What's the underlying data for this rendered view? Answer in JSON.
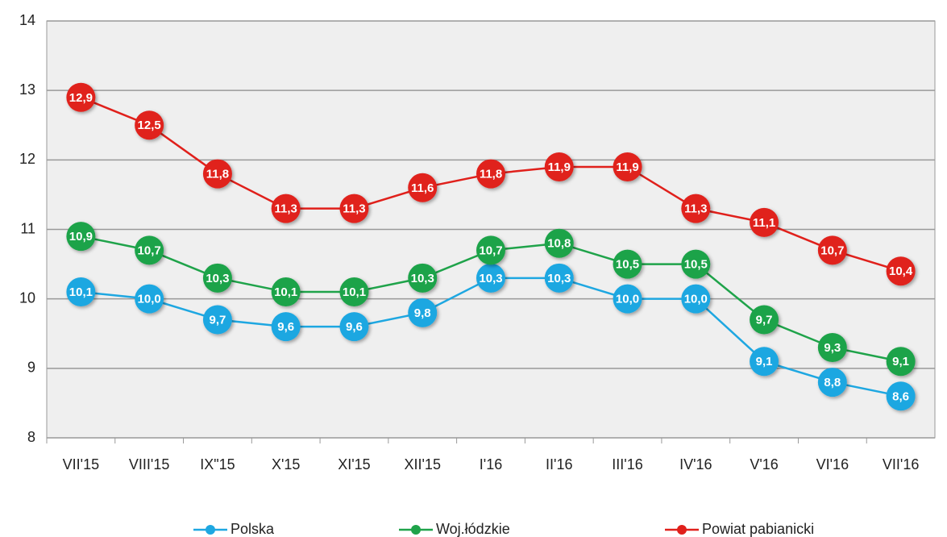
{
  "chart_data": {
    "type": "line",
    "categories": [
      "VII'15",
      "VIII'15",
      "IX\"15",
      "X'15",
      "XI'15",
      "XII'15",
      "I'16",
      "II'16",
      "III'16",
      "IV'16",
      "V'16",
      "VI'16",
      "VII'16"
    ],
    "series": [
      {
        "name": "Polska",
        "color": "#1ea7e1",
        "values": [
          10.1,
          10.0,
          9.7,
          9.6,
          9.6,
          9.8,
          10.3,
          10.3,
          10.0,
          10.0,
          9.1,
          8.8,
          8.6
        ],
        "value_labels": [
          "10,1",
          "10,0",
          "9,7",
          "9,6",
          "9,6",
          "9,8",
          "10,3",
          "10,3",
          "10,0",
          "10,0",
          "9,1",
          "8,8",
          "8,6"
        ]
      },
      {
        "name": "Woj.łódzkie",
        "color": "#1fa34a",
        "values": [
          10.9,
          10.7,
          10.3,
          10.1,
          10.1,
          10.3,
          10.7,
          10.8,
          10.5,
          10.5,
          9.7,
          9.3,
          9.1
        ],
        "value_labels": [
          "10,9",
          "10,7",
          "10,3",
          "10,1",
          "10,1",
          "10,3",
          "10,7",
          "10,8",
          "10,5",
          "10,5",
          "9,7",
          "9,3",
          "9,1"
        ]
      },
      {
        "name": "Powiat pabianicki",
        "color": "#e0201b",
        "values": [
          12.9,
          12.5,
          11.8,
          11.3,
          11.3,
          11.6,
          11.8,
          11.9,
          11.9,
          11.3,
          11.1,
          10.7,
          10.4
        ],
        "value_labels": [
          "12,9",
          "12,5",
          "11,8",
          "11,3",
          "11,3",
          "11,6",
          "11,8",
          "11,9",
          "11,9",
          "11,3",
          "11,1",
          "10,7",
          "10,4"
        ]
      }
    ],
    "ylim": [
      8,
      14
    ],
    "yticks": [
      8,
      9,
      10,
      11,
      12,
      13,
      14
    ],
    "grid": true,
    "legend": "bottom"
  }
}
